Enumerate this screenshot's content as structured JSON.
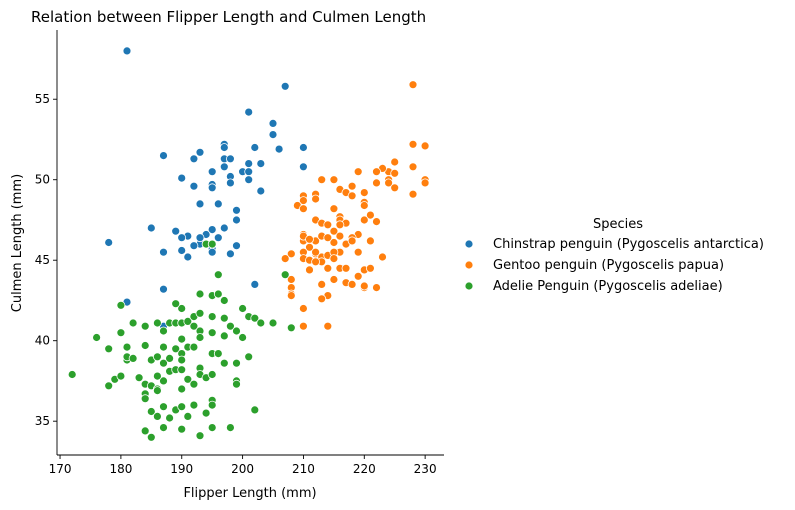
{
  "chart_data": {
    "type": "scatter",
    "title": "Relation between Flipper Length and Culmen Length",
    "xlabel": "Flipper Length (mm)",
    "ylabel": "Culmen Length (mm)",
    "xlim": [
      169.5,
      233.1
    ],
    "ylim": [
      32.9,
      59.3
    ],
    "xticks": [
      170,
      180,
      190,
      200,
      210,
      220,
      230
    ],
    "yticks": [
      35,
      40,
      45,
      50,
      55
    ],
    "grid": false,
    "legend": {
      "title": "Species",
      "placement": "right"
    },
    "series": [
      {
        "name": "Chinstrap penguin (Pygoscelis antarctica)",
        "color": "#1f77b4",
        "points": [
          [
            181,
            58.0
          ],
          [
            207,
            55.8
          ],
          [
            201,
            54.2
          ],
          [
            205,
            53.5
          ],
          [
            205,
            52.8
          ],
          [
            197,
            52.2
          ],
          [
            197,
            52.0
          ],
          [
            202,
            52.0
          ],
          [
            210,
            52.0
          ],
          [
            187,
            51.5
          ],
          [
            192,
            51.3
          ],
          [
            197,
            51.3
          ],
          [
            198,
            51.3
          ],
          [
            206,
            51.9
          ],
          [
            193,
            51.7
          ],
          [
            201,
            51.0
          ],
          [
            203,
            51.0
          ],
          [
            200,
            50.5
          ],
          [
            201,
            50.5
          ],
          [
            195,
            50.5
          ],
          [
            190,
            50.1
          ],
          [
            197,
            50.8
          ],
          [
            210,
            50.8
          ],
          [
            198,
            50.2
          ],
          [
            201,
            50.0
          ],
          [
            195,
            49.7
          ],
          [
            192,
            49.6
          ],
          [
            195,
            49.5
          ],
          [
            203,
            49.3
          ],
          [
            198,
            49.8
          ],
          [
            210,
            49.0
          ],
          [
            210,
            48.7
          ],
          [
            196,
            48.5
          ],
          [
            199,
            48.1
          ],
          [
            193,
            48.5
          ],
          [
            199,
            47.5
          ],
          [
            197,
            47.0
          ],
          [
            185,
            47.0
          ],
          [
            195,
            46.9
          ],
          [
            189,
            46.8
          ],
          [
            194,
            46.6
          ],
          [
            196,
            46.4
          ],
          [
            193,
            46.0
          ],
          [
            191,
            46.5
          ],
          [
            190,
            46.4
          ],
          [
            178,
            46.1
          ],
          [
            193,
            46.4
          ],
          [
            199,
            45.9
          ],
          [
            192,
            45.9
          ],
          [
            195,
            45.7
          ],
          [
            190,
            45.6
          ],
          [
            187,
            45.5
          ],
          [
            198,
            45.4
          ],
          [
            191,
            45.2
          ],
          [
            195,
            45.5
          ],
          [
            202,
            43.5
          ],
          [
            187,
            43.2
          ],
          [
            181,
            42.4
          ],
          [
            210,
            46.4
          ],
          [
            187,
            40.9
          ]
        ]
      },
      {
        "name": "Gentoo penguin (Pygoscelis papua)",
        "color": "#ff7f0e",
        "points": [
          [
            228,
            55.9
          ],
          [
            228,
            52.2
          ],
          [
            230,
            52.1
          ],
          [
            225,
            51.1
          ],
          [
            230,
            50.0
          ],
          [
            230,
            49.8
          ],
          [
            228,
            50.8
          ],
          [
            228,
            49.1
          ],
          [
            224,
            50.5
          ],
          [
            225,
            50.4
          ],
          [
            223,
            50.7
          ],
          [
            222,
            50.5
          ],
          [
            224,
            50.0
          ],
          [
            222,
            49.8
          ],
          [
            220,
            49.2
          ],
          [
            219,
            50.5
          ],
          [
            215,
            50.0
          ],
          [
            213,
            50.0
          ],
          [
            224,
            49.8
          ],
          [
            225,
            49.5
          ],
          [
            218,
            49.6
          ],
          [
            216,
            49.4
          ],
          [
            217,
            49.2
          ],
          [
            212,
            49.1
          ],
          [
            218,
            49.0
          ],
          [
            210,
            49.0
          ],
          [
            212,
            48.8
          ],
          [
            210,
            48.7
          ],
          [
            220,
            48.6
          ],
          [
            220,
            48.4
          ],
          [
            209,
            48.4
          ],
          [
            210,
            48.2
          ],
          [
            215,
            48.2
          ],
          [
            221,
            47.8
          ],
          [
            216,
            47.7
          ],
          [
            212,
            47.5
          ],
          [
            216,
            47.5
          ],
          [
            217,
            47.3
          ],
          [
            220,
            47.5
          ],
          [
            222,
            47.4
          ],
          [
            213,
            47.3
          ],
          [
            214,
            47.2
          ],
          [
            216,
            47.2
          ],
          [
            210,
            46.6
          ],
          [
            215,
            46.8
          ],
          [
            216,
            46.5
          ],
          [
            219,
            46.6
          ],
          [
            218,
            46.4
          ],
          [
            215,
            46.1
          ],
          [
            217,
            46.0
          ],
          [
            210,
            46.2
          ],
          [
            210,
            46.5
          ],
          [
            212,
            46.2
          ],
          [
            211,
            46.3
          ],
          [
            213,
            46.5
          ],
          [
            214,
            46.4
          ],
          [
            221,
            46.2
          ],
          [
            211,
            45.8
          ],
          [
            210,
            45.5
          ],
          [
            208,
            45.4
          ],
          [
            212,
            45.4
          ],
          [
            213,
            45.2
          ],
          [
            214,
            45.3
          ],
          [
            216,
            45.5
          ],
          [
            215,
            45.5
          ],
          [
            215,
            45.1
          ],
          [
            219,
            45.5
          ],
          [
            210,
            45.1
          ],
          [
            207,
            45.1
          ],
          [
            212,
            45.5
          ],
          [
            211,
            45.0
          ],
          [
            213,
            44.9
          ],
          [
            223,
            45.2
          ],
          [
            212,
            44.9
          ],
          [
            214,
            44.5
          ],
          [
            216,
            44.5
          ],
          [
            217,
            44.5
          ],
          [
            220,
            44.4
          ],
          [
            221,
            44.5
          ],
          [
            219,
            44.0
          ],
          [
            215,
            43.8
          ],
          [
            217,
            43.6
          ],
          [
            218,
            43.5
          ],
          [
            213,
            43.5
          ],
          [
            208,
            43.8
          ],
          [
            208,
            43.3
          ],
          [
            214,
            42.8
          ],
          [
            213,
            42.6
          ],
          [
            208,
            42.9
          ],
          [
            210,
            42.0
          ],
          [
            213,
            42.6
          ],
          [
            210,
            40.9
          ],
          [
            214,
            40.9
          ],
          [
            211,
            44.4
          ],
          [
            220,
            43.3
          ],
          [
            218,
            46.2
          ],
          [
            222,
            43.3
          ],
          [
            208,
            42.8
          ],
          [
            220,
            43.4
          ]
        ]
      },
      {
        "name": "Adelie Penguin (Pygoscelis adeliae)",
        "color": "#2ca02c",
        "points": [
          [
            172,
            37.9
          ],
          [
            176,
            40.2
          ],
          [
            178,
            39.5
          ],
          [
            178,
            37.2
          ],
          [
            179,
            37.6
          ],
          [
            180,
            40.5
          ],
          [
            180,
            42.2
          ],
          [
            180,
            37.8
          ],
          [
            181,
            38.8
          ],
          [
            181,
            39.0
          ],
          [
            181,
            39.6
          ],
          [
            182,
            41.1
          ],
          [
            183,
            37.7
          ],
          [
            184,
            40.9
          ],
          [
            184,
            39.7
          ],
          [
            184,
            37.3
          ],
          [
            184,
            36.7
          ],
          [
            184,
            36.4
          ],
          [
            184,
            34.4
          ],
          [
            185,
            34.0
          ],
          [
            185,
            37.2
          ],
          [
            185,
            38.8
          ],
          [
            185,
            35.6
          ],
          [
            186,
            41.1
          ],
          [
            186,
            39.0
          ],
          [
            186,
            37.0
          ],
          [
            186,
            36.9
          ],
          [
            186,
            35.3
          ],
          [
            187,
            40.6
          ],
          [
            187,
            39.6
          ],
          [
            187,
            38.6
          ],
          [
            187,
            37.5
          ],
          [
            187,
            35.9
          ],
          [
            187,
            34.6
          ],
          [
            188,
            41.1
          ],
          [
            188,
            38.1
          ],
          [
            188,
            35.2
          ],
          [
            188,
            38.9
          ],
          [
            189,
            41.1
          ],
          [
            189,
            39.5
          ],
          [
            189,
            38.2
          ],
          [
            189,
            35.7
          ],
          [
            190,
            42.0
          ],
          [
            190,
            41.1
          ],
          [
            190,
            39.2
          ],
          [
            190,
            38.8
          ],
          [
            190,
            38.2
          ],
          [
            190,
            37.0
          ],
          [
            190,
            35.9
          ],
          [
            190,
            34.5
          ],
          [
            191,
            41.2
          ],
          [
            191,
            39.6
          ],
          [
            191,
            37.6
          ],
          [
            191,
            35.3
          ],
          [
            192,
            41.5
          ],
          [
            192,
            40.9
          ],
          [
            192,
            39.6
          ],
          [
            192,
            37.3
          ],
          [
            192,
            36.0
          ],
          [
            193,
            42.9
          ],
          [
            193,
            40.6
          ],
          [
            193,
            40.2
          ],
          [
            193,
            38.3
          ],
          [
            193,
            37.9
          ],
          [
            193,
            34.1
          ],
          [
            194,
            37.7
          ],
          [
            194,
            35.5
          ],
          [
            195,
            42.8
          ],
          [
            195,
            41.5
          ],
          [
            195,
            40.5
          ],
          [
            195,
            39.2
          ],
          [
            195,
            37.9
          ],
          [
            195,
            36.3
          ],
          [
            195,
            36.0
          ],
          [
            195,
            34.6
          ],
          [
            196,
            42.9
          ],
          [
            196,
            44.1
          ],
          [
            196,
            39.2
          ],
          [
            197,
            42.5
          ],
          [
            197,
            41.4
          ],
          [
            197,
            40.3
          ],
          [
            197,
            38.6
          ],
          [
            198,
            34.6
          ],
          [
            198,
            40.9
          ],
          [
            199,
            40.6
          ],
          [
            199,
            38.6
          ],
          [
            199,
            37.5
          ],
          [
            199,
            37.3
          ],
          [
            200,
            42.0
          ],
          [
            200,
            40.2
          ],
          [
            201,
            41.5
          ],
          [
            201,
            39.0
          ],
          [
            202,
            41.4
          ],
          [
            202,
            35.7
          ],
          [
            203,
            41.1
          ],
          [
            205,
            41.1
          ],
          [
            207,
            44.1
          ],
          [
            208,
            40.8
          ],
          [
            194,
            46.0
          ],
          [
            193,
            41.7
          ],
          [
            190,
            40.1
          ],
          [
            195,
            46.0
          ],
          [
            189,
            42.3
          ],
          [
            186,
            37.8
          ],
          [
            182,
            38.9
          ]
        ]
      }
    ]
  }
}
